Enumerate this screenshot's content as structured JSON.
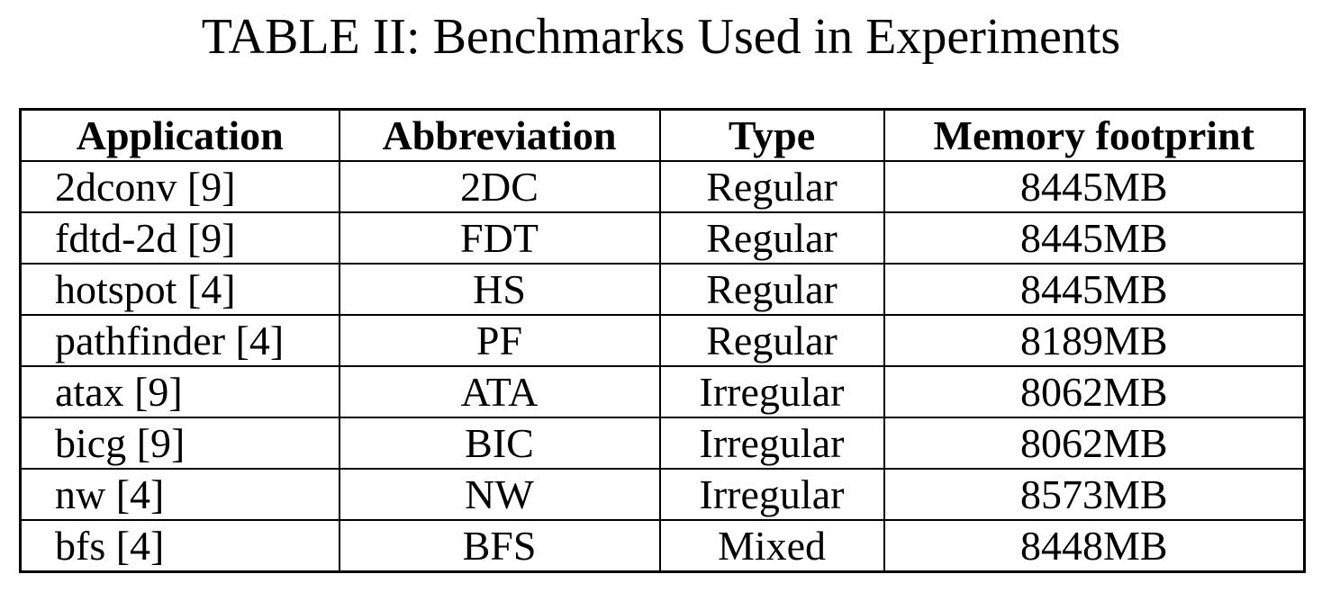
{
  "caption": "TABLE II: Benchmarks Used in Experiments",
  "table": {
    "headers": [
      "Application",
      "Abbreviation",
      "Type",
      "Memory footprint"
    ],
    "rows": [
      [
        "2dconv [9]",
        "2DC",
        "Regular",
        "8445MB"
      ],
      [
        "fdtd-2d [9]",
        "FDT",
        "Regular",
        "8445MB"
      ],
      [
        "hotspot [4]",
        "HS",
        "Regular",
        "8445MB"
      ],
      [
        "pathfinder [4]",
        "PF",
        "Regular",
        "8189MB"
      ],
      [
        "atax [9]",
        "ATA",
        "Irregular",
        "8062MB"
      ],
      [
        "bicg [9]",
        "BIC",
        "Irregular",
        "8062MB"
      ],
      [
        "nw [4]",
        "NW",
        "Irregular",
        "8573MB"
      ],
      [
        "bfs [4]",
        "BFS",
        "Mixed",
        "8448MB"
      ]
    ]
  }
}
